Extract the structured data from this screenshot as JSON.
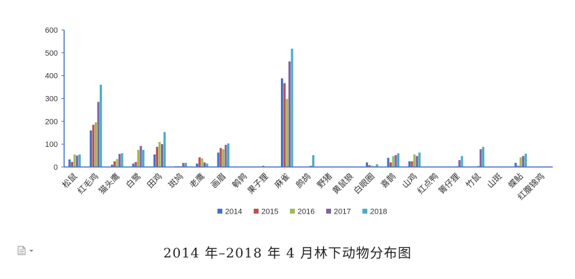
{
  "caption": "2014 年–2018 年 4 月林下动物分布图",
  "chart_data": {
    "type": "bar",
    "title": "",
    "xlabel": "",
    "ylabel": "",
    "ylim": [
      0,
      600
    ],
    "yticks": [
      0,
      100,
      200,
      300,
      400,
      500,
      600
    ],
    "grid": false,
    "legend_position": "bottom",
    "categories": [
      "松鼠",
      "红毛鸡",
      "猫头鹰",
      "白鹭",
      "田鸡",
      "斑鸠",
      "老鹰",
      "画眉",
      "鹌鹑",
      "果子狸",
      "麻雀",
      "鹧鸪",
      "野猪",
      "黄鼠狼",
      "白眼圈",
      "喜鹊",
      "山鸡",
      "红点鸭",
      "箐仔狸",
      "竹鼠",
      "山斑",
      "蝶鲇",
      "红腹锦鸡"
    ],
    "series": [
      {
        "name": "2014",
        "color": "#4472C4",
        "values": [
          33,
          160,
          10,
          15,
          55,
          3,
          15,
          63,
          0,
          0,
          388,
          0,
          0,
          0,
          20,
          40,
          25,
          0,
          0,
          0,
          0,
          18,
          0
        ]
      },
      {
        "name": "2015",
        "color": "#C0504D",
        "values": [
          22,
          185,
          25,
          22,
          88,
          3,
          42,
          83,
          0,
          5,
          367,
          0,
          0,
          0,
          8,
          20,
          25,
          0,
          0,
          0,
          0,
          5,
          0
        ]
      },
      {
        "name": "2016",
        "color": "#9BBB59",
        "values": [
          55,
          195,
          35,
          75,
          110,
          3,
          38,
          78,
          0,
          0,
          298,
          0,
          0,
          0,
          5,
          48,
          55,
          0,
          3,
          5,
          0,
          42,
          0
        ]
      },
      {
        "name": "2017",
        "color": "#8064A2",
        "values": [
          50,
          285,
          57,
          92,
          100,
          18,
          20,
          97,
          0,
          0,
          462,
          5,
          0,
          0,
          3,
          52,
          48,
          0,
          30,
          78,
          0,
          48,
          0
        ]
      },
      {
        "name": "2018",
        "color": "#4BACC6",
        "values": [
          55,
          360,
          60,
          75,
          153,
          18,
          15,
          103,
          0,
          0,
          518,
          52,
          0,
          0,
          12,
          60,
          63,
          0,
          48,
          88,
          0,
          58,
          0
        ]
      }
    ]
  }
}
